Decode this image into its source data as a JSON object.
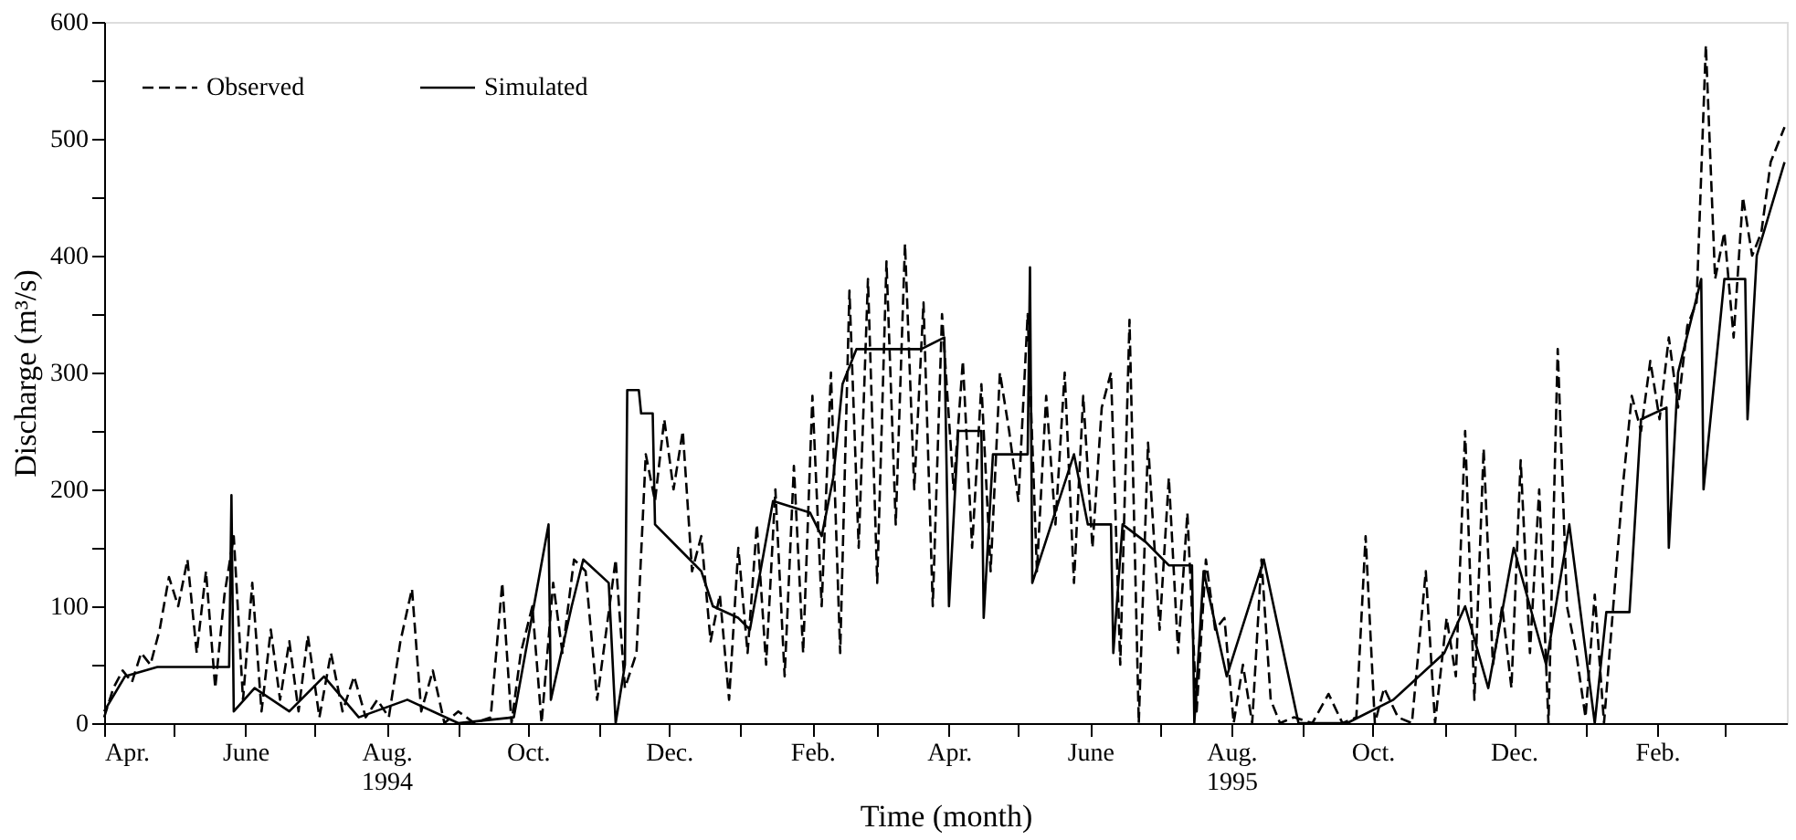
{
  "chart_data": {
    "type": "line",
    "xlabel": "Time (month)",
    "ylabel": "Discharge (m³/s)",
    "ylim": [
      0,
      600
    ],
    "yticks": [
      0,
      {
        "value": 50,
        "label": null
      },
      100,
      {
        "value": 150,
        "label": null
      },
      200,
      {
        "value": 250,
        "label": null
      },
      300,
      {
        "value": 350,
        "label": null
      },
      400,
      {
        "value": 450,
        "label": null
      },
      500,
      {
        "value": 550,
        "label": null
      },
      600
    ],
    "xlim": [
      "1994-04-01",
      "1996-03-28"
    ],
    "xticks": [
      {
        "value": "1994-04-01",
        "label": "Apr."
      },
      {
        "value": "1994-05-01",
        "label": null
      },
      {
        "value": "1994-06-01",
        "label": "June"
      },
      {
        "value": "1994-07-01",
        "label": null
      },
      {
        "value": "1994-08-01",
        "label": "Aug.\n1994"
      },
      {
        "value": "1994-09-01",
        "label": null
      },
      {
        "value": "1994-10-01",
        "label": "Oct."
      },
      {
        "value": "1994-11-01",
        "label": null
      },
      {
        "value": "1994-12-01",
        "label": "Dec."
      },
      {
        "value": "1995-01-01",
        "label": null
      },
      {
        "value": "1995-02-01",
        "label": "Feb."
      },
      {
        "value": "1995-03-01",
        "label": null
      },
      {
        "value": "1995-04-01",
        "label": "Apr."
      },
      {
        "value": "1995-05-01",
        "label": null
      },
      {
        "value": "1995-06-01",
        "label": "June"
      },
      {
        "value": "1995-07-01",
        "label": null
      },
      {
        "value": "1995-08-01",
        "label": "Aug.\n1995"
      },
      {
        "value": "1995-09-01",
        "label": null
      },
      {
        "value": "1995-10-01",
        "label": "Oct."
      },
      {
        "value": "1995-11-01",
        "label": null
      },
      {
        "value": "1995-12-01",
        "label": "Dec."
      },
      {
        "value": "1996-01-01",
        "label": null
      },
      {
        "value": "1996-02-01",
        "label": "Feb."
      },
      {
        "value": "1996-03-01",
        "label": null
      }
    ],
    "grid": false,
    "legend": "top left",
    "marker": "none",
    "series": [
      {
        "name": "Observed",
        "color": "#000000",
        "line_style": "dashed",
        "x": [
          "1994-04-01",
          "1994-04-05",
          "1994-04-09",
          "1994-04-13",
          "1994-04-17",
          "1994-04-21",
          "1994-04-25",
          "1994-04-29",
          "1994-05-03",
          "1994-05-07",
          "1994-05-11",
          "1994-05-15",
          "1994-05-19",
          "1994-05-23",
          "1994-05-27",
          "1994-05-31",
          "1994-06-04",
          "1994-06-08",
          "1994-06-12",
          "1994-06-16",
          "1994-06-20",
          "1994-06-24",
          "1994-06-28",
          "1994-07-03",
          "1994-07-08",
          "1994-07-13",
          "1994-07-18",
          "1994-07-23",
          "1994-07-28",
          "1994-08-02",
          "1994-08-07",
          "1994-08-12",
          "1994-08-16",
          "1994-08-21",
          "1994-08-26",
          "1994-09-01",
          "1994-09-08",
          "1994-09-15",
          "1994-09-20",
          "1994-09-24",
          "1994-09-28",
          "1994-10-03",
          "1994-10-07",
          "1994-10-12",
          "1994-10-16",
          "1994-10-21",
          "1994-10-26",
          "1994-10-31",
          "1994-11-04",
          "1994-11-08",
          "1994-11-12",
          "1994-11-17",
          "1994-11-21",
          "1994-11-25",
          "1994-11-29",
          "1994-12-03",
          "1994-12-07",
          "1994-12-11",
          "1994-12-15",
          "1994-12-19",
          "1994-12-23",
          "1994-12-27",
          "1994-12-31",
          "1995-01-04",
          "1995-01-08",
          "1995-01-12",
          "1995-01-16",
          "1995-01-20",
          "1995-01-24",
          "1995-01-28",
          "1995-02-01",
          "1995-02-05",
          "1995-02-09",
          "1995-02-13",
          "1995-02-17",
          "1995-02-21",
          "1995-02-25",
          "1995-03-01",
          "1995-03-05",
          "1995-03-09",
          "1995-03-13",
          "1995-03-17",
          "1995-03-21",
          "1995-03-25",
          "1995-03-29",
          "1995-04-03",
          "1995-04-07",
          "1995-04-11",
          "1995-04-15",
          "1995-04-19",
          "1995-04-23",
          "1995-04-27",
          "1995-05-01",
          "1995-05-05",
          "1995-05-09",
          "1995-05-13",
          "1995-05-17",
          "1995-05-21",
          "1995-05-25",
          "1995-05-29",
          "1995-06-02",
          "1995-06-06",
          "1995-06-10",
          "1995-06-14",
          "1995-06-18",
          "1995-06-22",
          "1995-06-26",
          "1995-07-01",
          "1995-07-05",
          "1995-07-09",
          "1995-07-13",
          "1995-07-17",
          "1995-07-21",
          "1995-07-25",
          "1995-07-29",
          "1995-08-02",
          "1995-08-06",
          "1995-08-10",
          "1995-08-14",
          "1995-08-18",
          "1995-08-22",
          "1995-08-28",
          "1995-09-05",
          "1995-09-12",
          "1995-09-18",
          "1995-09-24",
          "1995-09-28",
          "1995-10-02",
          "1995-10-06",
          "1995-10-12",
          "1995-10-18",
          "1995-10-24",
          "1995-10-28",
          "1995-11-02",
          "1995-11-06",
          "1995-11-10",
          "1995-11-14",
          "1995-11-18",
          "1995-11-22",
          "1995-11-26",
          "1995-11-30",
          "1995-12-04",
          "1995-12-08",
          "1995-12-12",
          "1995-12-16",
          "1995-12-20",
          "1995-12-24",
          "1995-12-28",
          "1996-01-01",
          "1996-01-05",
          "1996-01-09",
          "1996-01-13",
          "1996-01-17",
          "1996-01-21",
          "1996-01-25",
          "1996-01-29",
          "1996-02-02",
          "1996-02-06",
          "1996-02-10",
          "1996-02-14",
          "1996-02-18",
          "1996-02-22",
          "1996-02-26",
          "1996-03-01",
          "1996-03-05",
          "1996-03-09",
          "1996-03-13",
          "1996-03-17",
          "1996-03-21",
          "1996-03-25",
          "1996-03-27"
        ],
        "values": [
          5,
          30,
          45,
          35,
          60,
          50,
          80,
          125,
          100,
          140,
          60,
          130,
          30,
          110,
          160,
          20,
          120,
          10,
          80,
          20,
          70,
          10,
          75,
          5,
          60,
          10,
          40,
          5,
          20,
          5,
          70,
          115,
          10,
          45,
          0,
          10,
          0,
          5,
          120,
          0,
          60,
          100,
          0,
          120,
          60,
          140,
          130,
          20,
          80,
          140,
          30,
          60,
          230,
          190,
          260,
          200,
          250,
          130,
          160,
          70,
          110,
          20,
          150,
          60,
          170,
          50,
          200,
          40,
          220,
          60,
          280,
          100,
          300,
          60,
          370,
          150,
          380,
          120,
          395,
          170,
          410,
          200,
          360,
          100,
          350,
          200,
          310,
          150,
          290,
          130,
          300,
          250,
          190,
          350,
          130,
          280,
          170,
          300,
          120,
          280,
          150,
          270,
          300,
          50,
          345,
          0,
          240,
          80,
          210,
          60,
          180,
          10,
          140,
          80,
          90,
          0,
          50,
          0,
          140,
          20,
          0,
          5,
          0,
          25,
          0,
          5,
          160,
          0,
          30,
          5,
          0,
          130,
          0,
          90,
          40,
          250,
          20,
          235,
          50,
          100,
          30,
          225,
          60,
          200,
          0,
          320,
          100,
          60,
          5,
          110,
          0,
          100,
          200,
          280,
          250,
          310,
          260,
          330,
          270,
          340,
          360,
          580,
          380,
          420,
          330,
          450,
          400,
          420,
          480,
          500,
          510
        ]
      },
      {
        "name": "Simulated",
        "color": "#000000",
        "line_style": "solid",
        "x": [
          "1994-04-01",
          "1994-04-10",
          "1994-04-24",
          "1994-05-25",
          "1994-05-26",
          "1994-05-27",
          "1994-06-05",
          "1994-06-20",
          "1994-07-05",
          "1994-07-20",
          "1994-08-10",
          "1994-09-01",
          "1994-09-25",
          "1994-10-10",
          "1994-10-11",
          "1994-10-20",
          "1994-10-25",
          "1994-11-05",
          "1994-11-08",
          "1994-11-12",
          "1994-11-13",
          "1994-11-18",
          "1994-11-19",
          "1994-11-24",
          "1994-11-25",
          "1994-12-05",
          "1994-12-15",
          "1994-12-20",
          "1994-12-31",
          "1995-01-05",
          "1995-01-15",
          "1995-01-31",
          "1995-02-05",
          "1995-02-10",
          "1995-02-14",
          "1995-02-20",
          "1995-03-20",
          "1995-03-30",
          "1995-04-01",
          "1995-04-05",
          "1995-04-15",
          "1995-04-16",
          "1995-04-20",
          "1995-05-05",
          "1995-05-06",
          "1995-05-07",
          "1995-05-25",
          "1995-05-31",
          "1995-06-10",
          "1995-06-11",
          "1995-06-15",
          "1995-06-25",
          "1995-07-05",
          "1995-07-15",
          "1995-07-16",
          "1995-07-20",
          "1995-07-30",
          "1995-08-15",
          "1995-08-30",
          "1995-09-20",
          "1995-10-10",
          "1995-11-01",
          "1995-11-10",
          "1995-11-20",
          "1995-12-01",
          "1995-12-15",
          "1995-12-25",
          "1996-01-05",
          "1996-01-10",
          "1996-01-20",
          "1996-01-25",
          "1996-02-05",
          "1996-02-06",
          "1996-02-10",
          "1996-02-20",
          "1996-02-21",
          "1996-03-01",
          "1996-03-10",
          "1996-03-11",
          "1996-03-15",
          "1996-03-27"
        ],
        "values": [
          10,
          40,
          48,
          48,
          195,
          10,
          30,
          10,
          40,
          5,
          20,
          0,
          5,
          170,
          20,
          100,
          140,
          120,
          0,
          50,
          285,
          285,
          265,
          265,
          170,
          150,
          130,
          100,
          90,
          80,
          190,
          180,
          160,
          210,
          290,
          320,
          320,
          330,
          100,
          250,
          250,
          90,
          230,
          230,
          390,
          120,
          230,
          170,
          170,
          60,
          170,
          155,
          135,
          135,
          0,
          130,
          40,
          140,
          0,
          0,
          20,
          60,
          100,
          30,
          150,
          50,
          170,
          0,
          95,
          95,
          260,
          270,
          150,
          300,
          380,
          200,
          380,
          380,
          260,
          400,
          480
        ]
      }
    ]
  }
}
